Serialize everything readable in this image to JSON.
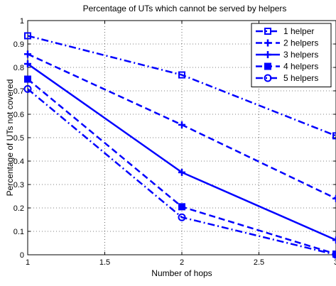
{
  "chart_data": {
    "type": "line",
    "title": "Percentage of UTs which cannot be served by helpers",
    "xlabel": "Number of hops",
    "ylabel": "Percentage of UTs not covered",
    "xlim": [
      1,
      3
    ],
    "ylim": [
      0,
      1
    ],
    "xticks": [
      "1",
      "1.5",
      "2",
      "2.5",
      "3"
    ],
    "yticks": [
      "0",
      "0.1",
      "0.2",
      "0.3",
      "0.4",
      "0.5",
      "0.6",
      "0.7",
      "0.8",
      "0.9",
      "1"
    ],
    "grid": true,
    "legend_position": "top-right",
    "x": [
      1,
      2,
      3
    ],
    "series": [
      {
        "name": "1 helper",
        "values": [
          0.935,
          0.768,
          0.508
        ],
        "line_style": "dashdot",
        "marker": "square-open",
        "color": "#0000ff"
      },
      {
        "name": "2 helpers",
        "values": [
          0.857,
          0.555,
          0.24
        ],
        "line_style": "dashed",
        "marker": "plus",
        "color": "#0000ff"
      },
      {
        "name": "3 helpers",
        "values": [
          0.815,
          0.352,
          0.063
        ],
        "line_style": "solid",
        "marker": "plus",
        "color": "#0000ff"
      },
      {
        "name": "4 helpers",
        "values": [
          0.75,
          0.205,
          0.003
        ],
        "line_style": "dashed",
        "marker": "square-filled",
        "color": "#0000ff"
      },
      {
        "name": "5 helpers",
        "values": [
          0.708,
          0.16,
          0.0
        ],
        "line_style": "dashdot",
        "marker": "circle-open",
        "color": "#0000ff"
      }
    ]
  }
}
